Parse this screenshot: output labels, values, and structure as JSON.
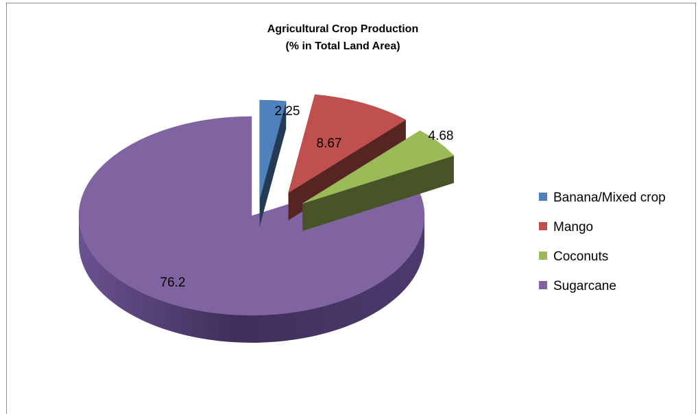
{
  "chart_data": {
    "type": "pie",
    "title": "Agricultural Crop Production",
    "subtitle": "(% in Total Land Area)",
    "categories": [
      "Banana/Mixed crop",
      "Mango",
      "Coconuts",
      "Sugarcane"
    ],
    "values": [
      2.25,
      8.67,
      4.68,
      76.2
    ],
    "data_labels": [
      "2.25",
      "8.67",
      "4.68",
      "76.2"
    ],
    "exploded": [
      true,
      true,
      true,
      false
    ],
    "three_d": true,
    "legend_position": "right",
    "colors": {
      "Banana/Mixed crop": "#4f81bd",
      "Mango": "#c0504d",
      "Coconuts": "#9bbb59",
      "Sugarcane": "#8064a2"
    }
  }
}
